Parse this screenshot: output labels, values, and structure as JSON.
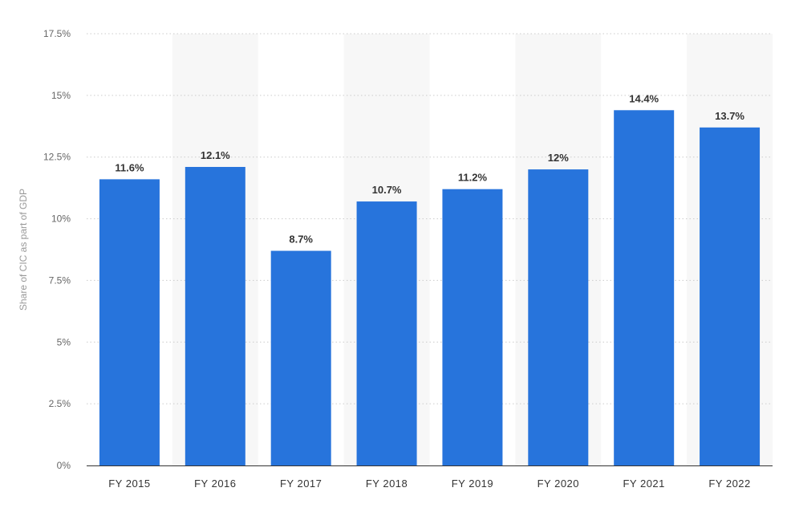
{
  "chart_data": {
    "type": "bar",
    "title": "",
    "xlabel": "",
    "ylabel": "Share of CIC as part of GDP",
    "categories": [
      "FY 2015",
      "FY 2016",
      "FY 2017",
      "FY 2018",
      "FY 2019",
      "FY 2020",
      "FY 2021",
      "FY 2022"
    ],
    "values": [
      11.6,
      12.1,
      8.7,
      10.7,
      11.2,
      12,
      14.4,
      13.7
    ],
    "value_labels": [
      "11.6%",
      "12.1%",
      "8.7%",
      "10.7%",
      "11.2%",
      "12%",
      "14.4%",
      "13.7%"
    ],
    "ylim": [
      0,
      17.5
    ],
    "yticks": [
      0,
      2.5,
      5,
      7.5,
      10,
      12.5,
      15,
      17.5
    ],
    "ytick_labels": [
      "0%",
      "2.5%",
      "5%",
      "7.5%",
      "10%",
      "12.5%",
      "15%",
      "17.5%"
    ],
    "grid": true,
    "grid_style": "dotted",
    "alternating_column_shading": true,
    "legend": "none",
    "colors": {
      "bar": "#2774DC",
      "grid": "#cccccc",
      "shade": "#f7f7f7",
      "axis": "#333333"
    }
  }
}
